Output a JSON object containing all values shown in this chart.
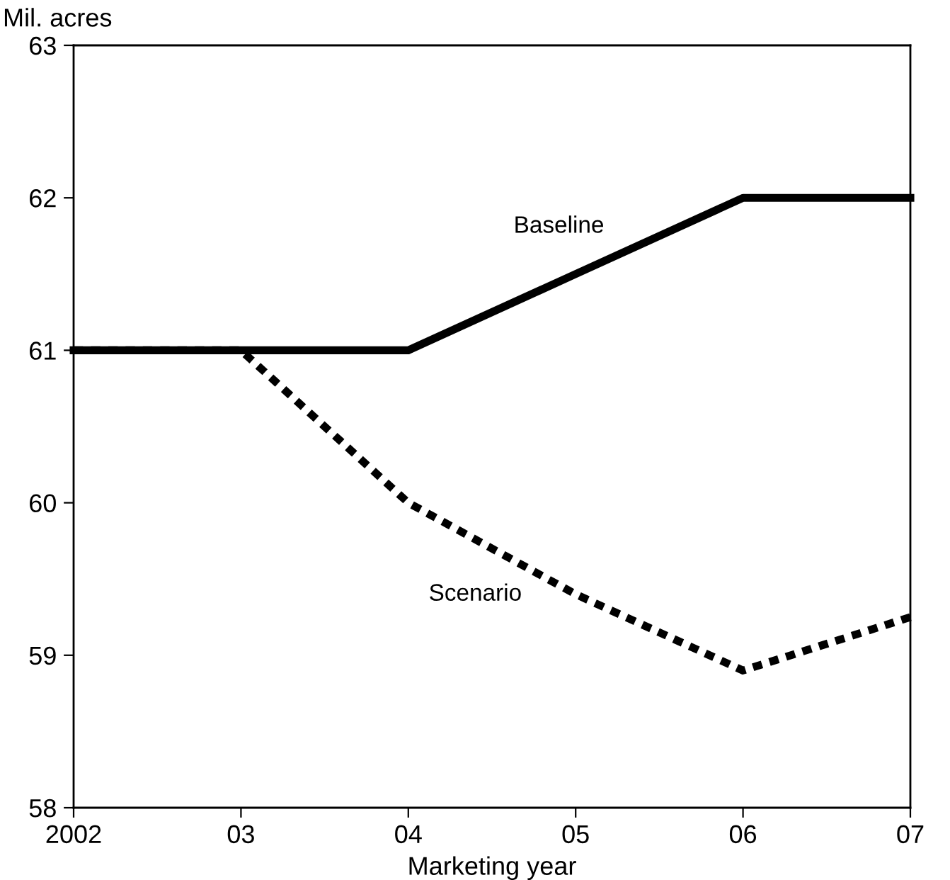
{
  "chart_data": {
    "type": "line",
    "ylabel": "Mil. acres",
    "xlabel": "Marketing year",
    "x": [
      2002,
      2003,
      2004,
      2005,
      2006,
      2007
    ],
    "series": [
      {
        "name": "Baseline",
        "color": "#000000",
        "line_style": "solid",
        "values": [
          61,
          61,
          61,
          61.5,
          62,
          62
        ]
      },
      {
        "name": "Scenario",
        "color": "#000000",
        "line_style": "dotted",
        "values": [
          61,
          61,
          60,
          59.4,
          58.9,
          59.25
        ]
      }
    ],
    "xlim": [
      2002,
      2007
    ],
    "xticks": [
      2002,
      {
        "value": 2003,
        "label": "03"
      },
      {
        "value": 2004,
        "label": "04"
      },
      {
        "value": 2005,
        "label": "05"
      },
      {
        "value": 2006,
        "label": "06"
      },
      {
        "value": 2007,
        "label": "07"
      }
    ],
    "ylim": [
      58,
      63
    ],
    "yticks": [
      58,
      59,
      60,
      61,
      62,
      63
    ],
    "grid": false,
    "legend": false,
    "marker": "none"
  }
}
